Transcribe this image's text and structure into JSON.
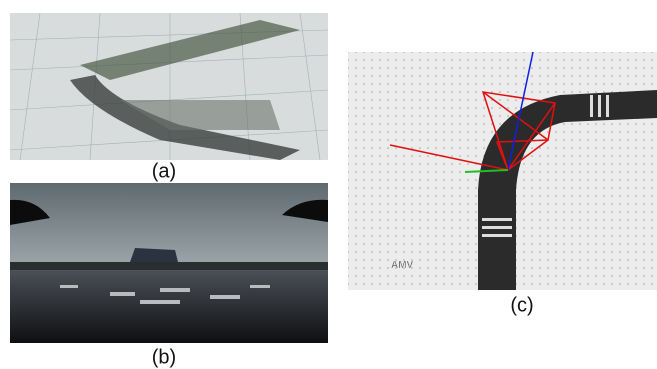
{
  "figure": {
    "panels": [
      {
        "caption": "(a)"
      },
      {
        "caption": "(b)"
      },
      {
        "caption": "(c)",
        "logo": "AMV"
      }
    ]
  }
}
